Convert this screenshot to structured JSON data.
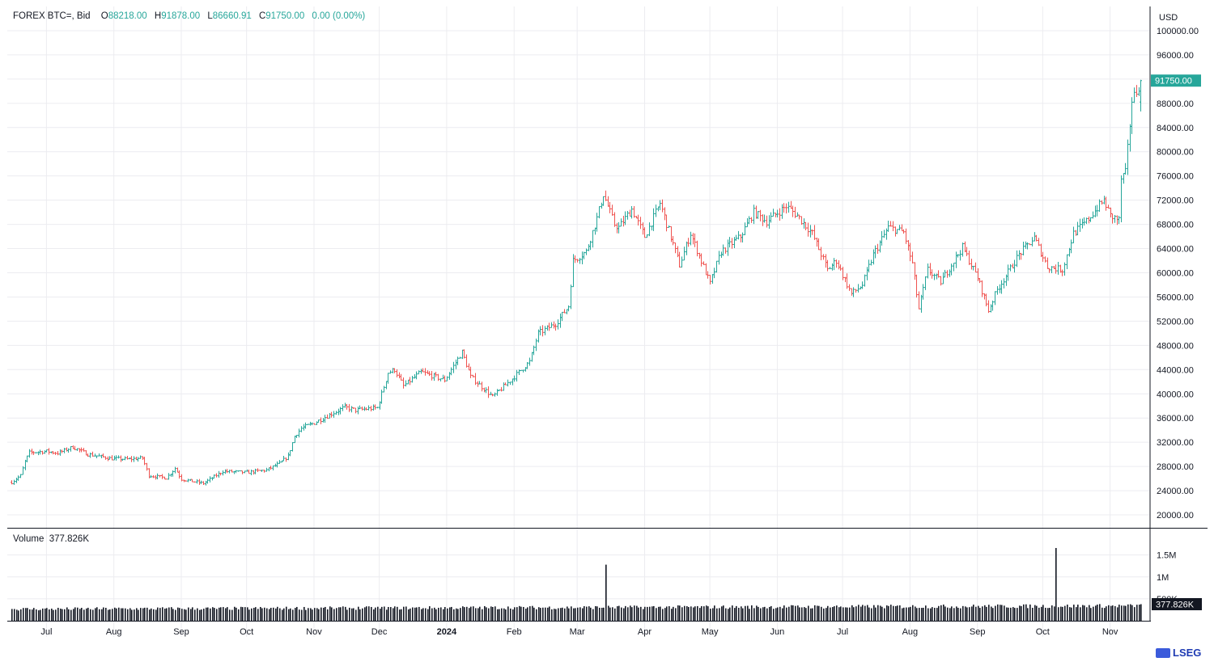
{
  "header": {
    "symbol": "FOREX BTC=, Bid",
    "open_label": "O",
    "open": "88218.00",
    "high_label": "H",
    "high": "91878.00",
    "low_label": "L",
    "low": "86660.91",
    "close_label": "C",
    "close": "91750.00",
    "change": "0.00 (0.00%)"
  },
  "currency": "USD",
  "volume_legend": {
    "label": "Volume",
    "value": "377.826K"
  },
  "logo": "LSEG",
  "colors": {
    "up": "#26a69a",
    "down": "#ef5350",
    "last_price_tag": "#26a69a",
    "grid": "#ececf0",
    "volume": "#131722"
  },
  "chart_data": {
    "type": "ohlc",
    "title": "FOREX BTC=, Bid",
    "xlabel": "",
    "ylabel": "",
    "ylim": [
      18000,
      104000
    ],
    "yticks": [
      20000,
      24000,
      28000,
      32000,
      36000,
      40000,
      44000,
      48000,
      52000,
      56000,
      60000,
      64000,
      68000,
      72000,
      76000,
      80000,
      84000,
      88000,
      92000,
      96000,
      100000
    ],
    "ytick_labels": [
      "20000.00",
      "24000.00",
      "28000.00",
      "32000.00",
      "36000.00",
      "40000.00",
      "44000.00",
      "48000.00",
      "52000.00",
      "56000.00",
      "60000.00",
      "64000.00",
      "68000.00",
      "72000.00",
      "76000.00",
      "80000.00",
      "84000.00",
      "88000.00",
      "96000.00",
      "100000.00"
    ],
    "last_price": 91750,
    "last_price_label": "91750.00",
    "x_labels": [
      {
        "label": "Jul",
        "date": "2023-07-01",
        "bold": false
      },
      {
        "label": "Aug",
        "date": "2023-08-01",
        "bold": false
      },
      {
        "label": "Sep",
        "date": "2023-09-01",
        "bold": false
      },
      {
        "label": "Oct",
        "date": "2023-10-01",
        "bold": false
      },
      {
        "label": "Nov",
        "date": "2023-11-01",
        "bold": false
      },
      {
        "label": "Dec",
        "date": "2023-12-01",
        "bold": false
      },
      {
        "label": "2024",
        "date": "2024-01-01",
        "bold": true
      },
      {
        "label": "Feb",
        "date": "2024-02-01",
        "bold": false
      },
      {
        "label": "Mar",
        "date": "2024-03-01",
        "bold": false
      },
      {
        "label": "Apr",
        "date": "2024-04-01",
        "bold": false
      },
      {
        "label": "May",
        "date": "2024-05-01",
        "bold": false
      },
      {
        "label": "Jun",
        "date": "2024-06-01",
        "bold": false
      },
      {
        "label": "Jul",
        "date": "2024-07-01",
        "bold": false
      },
      {
        "label": "Aug",
        "date": "2024-08-01",
        "bold": false
      },
      {
        "label": "Sep",
        "date": "2024-09-01",
        "bold": false
      },
      {
        "label": "Oct",
        "date": "2024-10-01",
        "bold": false
      },
      {
        "label": "Nov",
        "date": "2024-11-01",
        "bold": false
      }
    ],
    "start_date": "2023-06-15",
    "end_date": "2024-11-15",
    "close_path": [
      [
        "2023-06-15",
        25400
      ],
      [
        "2023-06-19",
        26500
      ],
      [
        "2023-06-21",
        28800
      ],
      [
        "2023-06-23",
        30300
      ],
      [
        "2023-07-01",
        30500
      ],
      [
        "2023-07-06",
        30200
      ],
      [
        "2023-07-13",
        31200
      ],
      [
        "2023-07-20",
        30000
      ],
      [
        "2023-07-31",
        29300
      ],
      [
        "2023-08-08",
        29200
      ],
      [
        "2023-08-14",
        29400
      ],
      [
        "2023-08-17",
        26500
      ],
      [
        "2023-08-25",
        26100
      ],
      [
        "2023-08-29",
        27700
      ],
      [
        "2023-09-01",
        25900
      ],
      [
        "2023-09-11",
        25200
      ],
      [
        "2023-09-20",
        27200
      ],
      [
        "2023-10-01",
        27000
      ],
      [
        "2023-10-10",
        27400
      ],
      [
        "2023-10-16",
        28500
      ],
      [
        "2023-10-20",
        29700
      ],
      [
        "2023-10-23",
        33000
      ],
      [
        "2023-10-26",
        34300
      ],
      [
        "2023-11-01",
        35200
      ],
      [
        "2023-11-09",
        36700
      ],
      [
        "2023-11-15",
        37800
      ],
      [
        "2023-11-20",
        37300
      ],
      [
        "2023-11-30",
        37700
      ],
      [
        "2023-12-05",
        43500
      ],
      [
        "2023-12-08",
        44000
      ],
      [
        "2023-12-12",
        41300
      ],
      [
        "2023-12-20",
        43600
      ],
      [
        "2023-12-31",
        42300
      ],
      [
        "2024-01-08",
        46900
      ],
      [
        "2024-01-12",
        42800
      ],
      [
        "2024-01-22",
        39500
      ],
      [
        "2024-01-31",
        42500
      ],
      [
        "2024-02-08",
        45300
      ],
      [
        "2024-02-12",
        50000
      ],
      [
        "2024-02-20",
        51600
      ],
      [
        "2024-02-26",
        54500
      ],
      [
        "2024-02-28",
        62000
      ],
      [
        "2024-03-05",
        63500
      ],
      [
        "2024-03-10",
        69000
      ],
      [
        "2024-03-13",
        73000
      ],
      [
        "2024-03-18",
        68000
      ],
      [
        "2024-03-20",
        67500
      ],
      [
        "2024-03-26",
        70500
      ],
      [
        "2024-04-01",
        66000
      ],
      [
        "2024-04-08",
        71500
      ],
      [
        "2024-04-12",
        67000
      ],
      [
        "2024-04-17",
        61300
      ],
      [
        "2024-04-22",
        66500
      ],
      [
        "2024-05-01",
        58200
      ],
      [
        "2024-05-06",
        63500
      ],
      [
        "2024-05-15",
        66000
      ],
      [
        "2024-05-21",
        70000
      ],
      [
        "2024-05-27",
        68500
      ],
      [
        "2024-06-05",
        71000
      ],
      [
        "2024-06-10",
        69500
      ],
      [
        "2024-06-17",
        66500
      ],
      [
        "2024-06-24",
        60500
      ],
      [
        "2024-06-28",
        62000
      ],
      [
        "2024-07-05",
        56500
      ],
      [
        "2024-07-10",
        58000
      ],
      [
        "2024-07-15",
        63000
      ],
      [
        "2024-07-22",
        67500
      ],
      [
        "2024-07-29",
        66700
      ],
      [
        "2024-08-02",
        61500
      ],
      [
        "2024-08-05",
        54000
      ],
      [
        "2024-08-09",
        60500
      ],
      [
        "2024-08-15",
        58500
      ],
      [
        "2024-08-25",
        64200
      ],
      [
        "2024-09-01",
        59200
      ],
      [
        "2024-09-06",
        53800
      ],
      [
        "2024-09-10",
        57200
      ],
      [
        "2024-09-20",
        63000
      ],
      [
        "2024-09-27",
        65800
      ],
      [
        "2024-10-03",
        61000
      ],
      [
        "2024-10-10",
        60500
      ],
      [
        "2024-10-15",
        66500
      ],
      [
        "2024-10-21",
        68500
      ],
      [
        "2024-10-29",
        72000
      ],
      [
        "2024-11-01",
        69400
      ],
      [
        "2024-11-05",
        68700
      ],
      [
        "2024-11-06",
        75500
      ],
      [
        "2024-11-08",
        76500
      ],
      [
        "2024-11-11",
        88500
      ],
      [
        "2024-11-13",
        90000
      ],
      [
        "2024-11-15",
        91750
      ]
    ],
    "volume": {
      "ylim": [
        0,
        1900000
      ],
      "yticks": [
        500000,
        1000000,
        1500000
      ],
      "ytick_labels": [
        "500K",
        "1M",
        "1.5M"
      ],
      "typical_range": [
        250000,
        330000
      ],
      "spikes": [
        {
          "date": "2024-03-14",
          "value": 1280000
        },
        {
          "date": "2024-10-07",
          "value": 1660000
        }
      ],
      "last_value": 377826,
      "last_value_label": "377.826K"
    }
  }
}
